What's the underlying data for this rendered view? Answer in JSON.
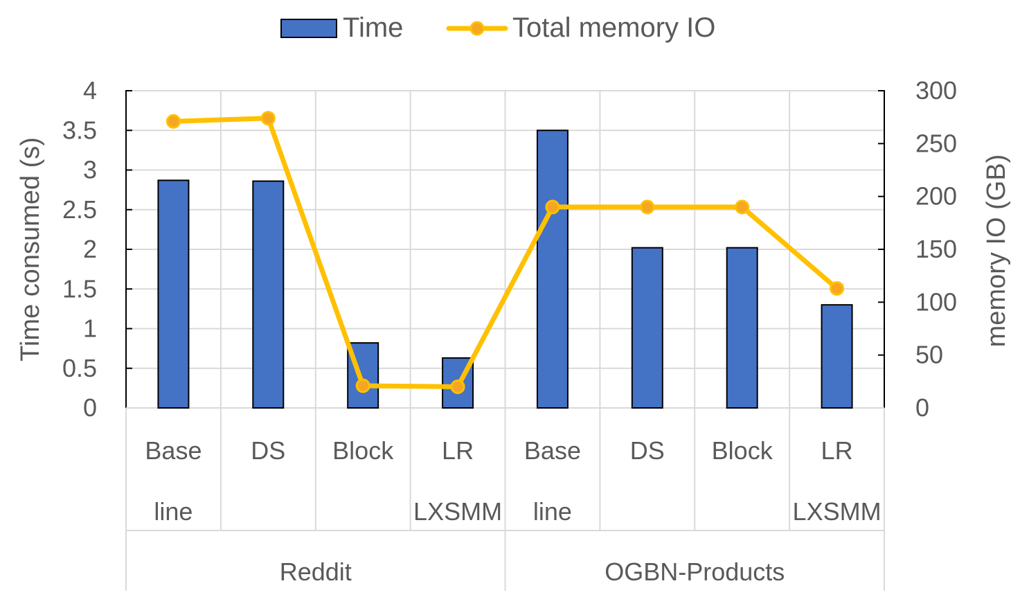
{
  "chart_data": {
    "type": "bar",
    "title": "",
    "legend_position": "top",
    "grid": true,
    "groups": [
      {
        "name": "Reddit",
        "categories": [
          "Base line",
          "DS",
          "Block",
          "LR LXSMM"
        ]
      },
      {
        "name": "OGBN-Products",
        "categories": [
          "Base line",
          "DS",
          "Block",
          "LR LXSMM"
        ]
      }
    ],
    "category_labels": [
      [
        "Base",
        "line"
      ],
      [
        "DS"
      ],
      [
        "Block"
      ],
      [
        "LR",
        "LXSMM"
      ],
      [
        "Base",
        "line"
      ],
      [
        "DS"
      ],
      [
        "Block"
      ],
      [
        "LR",
        "LXSMM"
      ]
    ],
    "series": [
      {
        "name": "Time",
        "type": "bar",
        "axis": "left",
        "color": "#4472C4",
        "values": [
          2.87,
          2.86,
          0.82,
          0.63,
          3.5,
          2.02,
          2.02,
          1.3
        ]
      },
      {
        "name": "Total memory IO",
        "type": "line",
        "axis": "right",
        "color": "#FFC000",
        "marker_color": "#F5A623",
        "values": [
          271,
          274,
          21,
          20,
          190,
          190,
          190,
          113
        ]
      }
    ],
    "y_left": {
      "label": "Time consumed (s)",
      "min": 0,
      "max": 4,
      "ticks": [
        "0",
        "0.5",
        "1",
        "1.5",
        "2",
        "2.5",
        "3",
        "3.5",
        "4"
      ]
    },
    "y_right": {
      "label": "memory IO (GB)",
      "min": 0,
      "max": 300,
      "ticks": [
        "0",
        "50",
        "100",
        "150",
        "200",
        "250",
        "300"
      ]
    }
  }
}
